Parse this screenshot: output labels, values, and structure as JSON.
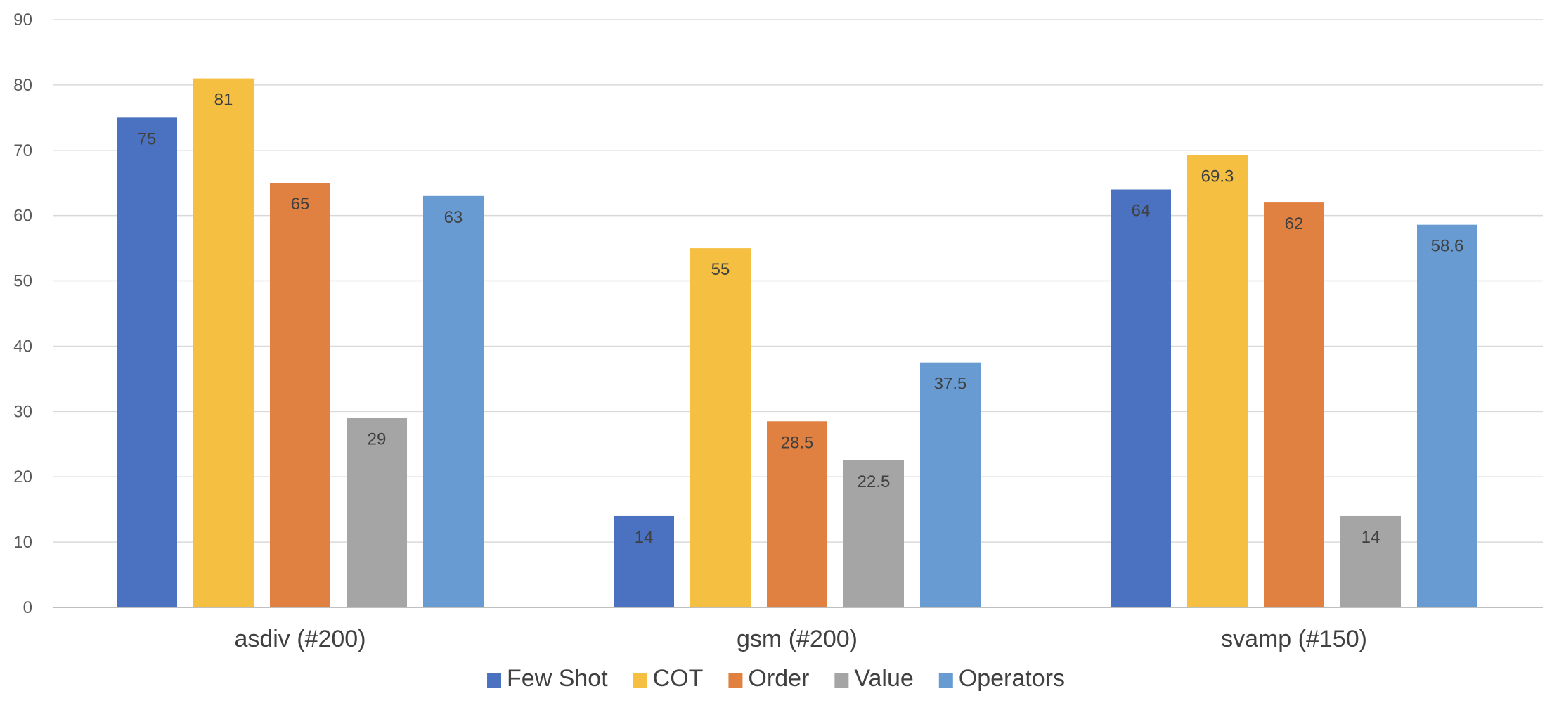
{
  "chart_data": {
    "type": "bar",
    "title": "",
    "xlabel": "",
    "ylabel": "",
    "categories": [
      "asdiv (#200)",
      "gsm (#200)",
      "svamp (#150)"
    ],
    "series": [
      {
        "name": "Few Shot",
        "color": "#4a72c0",
        "values": [
          75,
          14,
          64
        ]
      },
      {
        "name": "COT",
        "color": "#f5bf42",
        "values": [
          81,
          55,
          69.3
        ]
      },
      {
        "name": "Order",
        "color": "#e08141",
        "values": [
          65,
          28.5,
          62
        ]
      },
      {
        "name": "Value",
        "color": "#a5a5a5",
        "values": [
          29,
          22.5,
          14
        ]
      },
      {
        "name": "Operators",
        "color": "#679bd2",
        "values": [
          63,
          37.5,
          58.6
        ]
      }
    ],
    "ylim": [
      0,
      90
    ],
    "yticks": [
      0,
      10,
      20,
      30,
      40,
      50,
      60,
      70,
      80,
      90
    ],
    "grid": true,
    "legend": "bottom-center",
    "data_labels": true
  }
}
